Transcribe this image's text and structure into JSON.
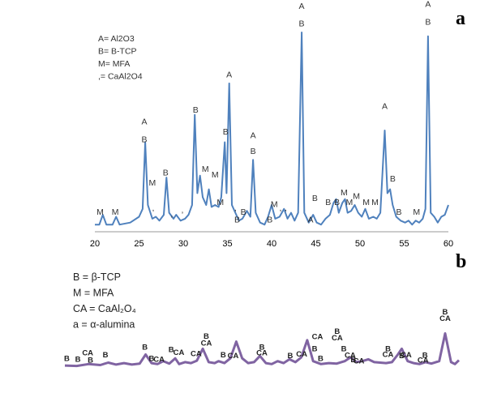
{
  "chart_data": [
    {
      "type": "line",
      "panel_label": "a",
      "series_color": "#4f81bd",
      "legend": [
        "A= Al2O3",
        "B= B-TCP",
        "M= MFA",
        ",= CaAl2O4"
      ],
      "xlim": [
        20,
        60
      ],
      "x_ticks": [
        "20",
        "25",
        "30",
        "35",
        "40",
        "45",
        "50",
        "55",
        "60"
      ],
      "ylim": [
        0,
        100
      ],
      "grid": false,
      "axis_line": "bottom only",
      "series": [
        {
          "points": [
            [
              20.0,
              2
            ],
            [
              20.5,
              2
            ],
            [
              20.9,
              7
            ],
            [
              21.3,
              2
            ],
            [
              22.0,
              2
            ],
            [
              22.4,
              6
            ],
            [
              22.8,
              2
            ],
            [
              24.0,
              3
            ],
            [
              25.0,
              6
            ],
            [
              25.4,
              10
            ],
            [
              25.7,
              44
            ],
            [
              26.0,
              12
            ],
            [
              26.5,
              5
            ],
            [
              26.9,
              6
            ],
            [
              27.3,
              4
            ],
            [
              27.8,
              7
            ],
            [
              28.1,
              26
            ],
            [
              28.4,
              8
            ],
            [
              28.9,
              5
            ],
            [
              29.2,
              7
            ],
            [
              29.7,
              4
            ],
            [
              30.2,
              5
            ],
            [
              30.6,
              7
            ],
            [
              31.0,
              12
            ],
            [
              31.3,
              58
            ],
            [
              31.6,
              18
            ],
            [
              31.9,
              27
            ],
            [
              32.2,
              16
            ],
            [
              32.6,
              12
            ],
            [
              32.9,
              20
            ],
            [
              33.2,
              11
            ],
            [
              33.6,
              12
            ],
            [
              34.0,
              11
            ],
            [
              34.3,
              16
            ],
            [
              34.7,
              44
            ],
            [
              34.9,
              18
            ],
            [
              35.2,
              74
            ],
            [
              35.5,
              12
            ],
            [
              35.9,
              8
            ],
            [
              36.3,
              4
            ],
            [
              36.7,
              5
            ],
            [
              37.2,
              9
            ],
            [
              37.6,
              6
            ],
            [
              37.9,
              35
            ],
            [
              38.2,
              8
            ],
            [
              38.7,
              3
            ],
            [
              39.2,
              2
            ],
            [
              39.6,
              6
            ],
            [
              40.0,
              12
            ],
            [
              40.4,
              5
            ],
            [
              40.9,
              6
            ],
            [
              41.4,
              10
            ],
            [
              41.8,
              5
            ],
            [
              42.2,
              8
            ],
            [
              42.6,
              4
            ],
            [
              43.0,
              8
            ],
            [
              43.4,
              100
            ],
            [
              43.7,
              8
            ],
            [
              44.2,
              3
            ],
            [
              44.7,
              7
            ],
            [
              45.1,
              3
            ],
            [
              45.6,
              2
            ],
            [
              46.1,
              5
            ],
            [
              46.6,
              7
            ],
            [
              47.0,
              13
            ],
            [
              47.3,
              15
            ],
            [
              47.6,
              8
            ],
            [
              48.0,
              13
            ],
            [
              48.3,
              15
            ],
            [
              48.6,
              8
            ],
            [
              49.0,
              9
            ],
            [
              49.4,
              12
            ],
            [
              49.8,
              8
            ],
            [
              50.2,
              6
            ],
            [
              50.6,
              10
            ],
            [
              51.0,
              5
            ],
            [
              51.5,
              6
            ],
            [
              51.9,
              5
            ],
            [
              52.3,
              8
            ],
            [
              52.8,
              50
            ],
            [
              53.1,
              18
            ],
            [
              53.4,
              20
            ],
            [
              53.7,
              12
            ],
            [
              54.1,
              6
            ],
            [
              54.6,
              4
            ],
            [
              55.1,
              3
            ],
            [
              55.5,
              4
            ],
            [
              55.9,
              2
            ],
            [
              56.3,
              4
            ],
            [
              56.7,
              3
            ],
            [
              57.1,
              5
            ],
            [
              57.4,
              10
            ],
            [
              57.7,
              98
            ],
            [
              58.0,
              8
            ],
            [
              58.4,
              6
            ],
            [
              58.8,
              3
            ],
            [
              59.2,
              6
            ],
            [
              59.6,
              7
            ],
            [
              60.0,
              12
            ]
          ]
        }
      ],
      "peak_labels": [
        {
          "x": 20.6,
          "y": 7,
          "text": "M"
        },
        {
          "x": 22.3,
          "y": 7,
          "text": "M"
        },
        {
          "x": 25.6,
          "y": 53,
          "text": "A"
        },
        {
          "x": 25.6,
          "y": 44,
          "text": "B"
        },
        {
          "x": 26.5,
          "y": 22,
          "text": "M"
        },
        {
          "x": 26.6,
          "y": 9,
          "text": ","
        },
        {
          "x": 28.0,
          "y": 27,
          "text": "B"
        },
        {
          "x": 28.7,
          "y": 6,
          "text": ","
        },
        {
          "x": 29.9,
          "y": 8,
          "text": ","
        },
        {
          "x": 31.4,
          "y": 59,
          "text": "B"
        },
        {
          "x": 32.5,
          "y": 29,
          "text": "M"
        },
        {
          "x": 33.6,
          "y": 26,
          "text": "M"
        },
        {
          "x": 34.2,
          "y": 12,
          "text": "M"
        },
        {
          "x": 34.8,
          "y": 48,
          "text": "B"
        },
        {
          "x": 35.2,
          "y": 77,
          "text": "A"
        },
        {
          "x": 35.9,
          "y": 9,
          "text": ","
        },
        {
          "x": 36.1,
          "y": 3,
          "text": "B"
        },
        {
          "x": 36.8,
          "y": 7,
          "text": "B"
        },
        {
          "x": 37.9,
          "y": 46,
          "text": "A"
        },
        {
          "x": 37.9,
          "y": 38,
          "text": "B"
        },
        {
          "x": 39.8,
          "y": 3,
          "text": "B"
        },
        {
          "x": 40.3,
          "y": 11,
          "text": "M"
        },
        {
          "x": 41.0,
          "y": 9,
          "text": ","
        },
        {
          "x": 41.6,
          "y": 9,
          "text": ","
        },
        {
          "x": 43.4,
          "y": 112,
          "text": "A"
        },
        {
          "x": 43.4,
          "y": 103,
          "text": "B"
        },
        {
          "x": 44.4,
          "y": 3,
          "text": "A"
        },
        {
          "x": 44.9,
          "y": 14,
          "text": "B"
        },
        {
          "x": 46.4,
          "y": 12,
          "text": "B"
        },
        {
          "x": 47.4,
          "y": 12,
          "text": "B"
        },
        {
          "x": 48.2,
          "y": 17,
          "text": "M"
        },
        {
          "x": 48.8,
          "y": 12,
          "text": "M"
        },
        {
          "x": 49.6,
          "y": 15,
          "text": "M"
        },
        {
          "x": 50.7,
          "y": 12,
          "text": "M"
        },
        {
          "x": 51.7,
          "y": 12,
          "text": "M"
        },
        {
          "x": 52.8,
          "y": 61,
          "text": "A"
        },
        {
          "x": 53.7,
          "y": 24,
          "text": "B"
        },
        {
          "x": 54.4,
          "y": 7,
          "text": "B"
        },
        {
          "x": 56.4,
          "y": 7,
          "text": "M"
        },
        {
          "x": 57.7,
          "y": 113,
          "text": "A"
        },
        {
          "x": 57.7,
          "y": 104,
          "text": "B"
        }
      ]
    },
    {
      "type": "line",
      "panel_label": "b",
      "series_color": "#8064a2",
      "legend": [
        "B = β-TCP",
        "M = MFA",
        "CA = CaAl₂O₄",
        "a = α-alumina"
      ],
      "xlim": [
        0,
        100
      ],
      "ylim": [
        0,
        100
      ],
      "axes_shown": false,
      "series": [
        {
          "points": [
            [
              0,
              5
            ],
            [
              3,
              4
            ],
            [
              6,
              8
            ],
            [
              9,
              6
            ],
            [
              11,
              11
            ],
            [
              13,
              7
            ],
            [
              15,
              10
            ],
            [
              17,
              7
            ],
            [
              19,
              9
            ],
            [
              20.5,
              28
            ],
            [
              22,
              10
            ],
            [
              23.5,
              8
            ],
            [
              25,
              14
            ],
            [
              26.5,
              9
            ],
            [
              28,
              20
            ],
            [
              29,
              8
            ],
            [
              30.5,
              12
            ],
            [
              32,
              10
            ],
            [
              33.5,
              15
            ],
            [
              35,
              40
            ],
            [
              36.5,
              12
            ],
            [
              38,
              10
            ],
            [
              39,
              14
            ],
            [
              40.5,
              10
            ],
            [
              42,
              20
            ],
            [
              43.5,
              55
            ],
            [
              45,
              20
            ],
            [
              46.5,
              10
            ],
            [
              48,
              12
            ],
            [
              49.5,
              25
            ],
            [
              51,
              10
            ],
            [
              52.5,
              8
            ],
            [
              54,
              14
            ],
            [
              55.5,
              10
            ],
            [
              57,
              18
            ],
            [
              58.5,
              12
            ],
            [
              60,
              22
            ],
            [
              61.5,
              58
            ],
            [
              63,
              14
            ],
            [
              65,
              8
            ],
            [
              67,
              10
            ],
            [
              69,
              9
            ],
            [
              71,
              14
            ],
            [
              72.5,
              22
            ],
            [
              74,
              12
            ],
            [
              75.5,
              14
            ],
            [
              77,
              18
            ],
            [
              78.5,
              12
            ],
            [
              80,
              11
            ],
            [
              81.5,
              10
            ],
            [
              83,
              12
            ],
            [
              84.5,
              28
            ],
            [
              85.5,
              40
            ],
            [
              87,
              14
            ],
            [
              88.5,
              10
            ],
            [
              90,
              8
            ],
            [
              91.5,
              12
            ],
            [
              93,
              9
            ],
            [
              95,
              14
            ],
            [
              96.5,
              72
            ],
            [
              98,
              12
            ],
            [
              99,
              8
            ],
            [
              100,
              16
            ]
          ]
        }
      ],
      "peak_labels": [
        {
          "x": 0.5,
          "y": 14,
          "text": "B"
        },
        {
          "x": 3.3,
          "y": 13,
          "text": "B"
        },
        {
          "x": 5.8,
          "y": 26,
          "text": "CA"
        },
        {
          "x": 6.5,
          "y": 11,
          "text": "B"
        },
        {
          "x": 10.3,
          "y": 22,
          "text": "B"
        },
        {
          "x": 20.3,
          "y": 38,
          "text": "B"
        },
        {
          "x": 22.0,
          "y": 14,
          "text": "B"
        },
        {
          "x": 23.9,
          "y": 13,
          "text": "CA"
        },
        {
          "x": 27.0,
          "y": 33,
          "text": "B"
        },
        {
          "x": 28.9,
          "y": 27,
          "text": "CA"
        },
        {
          "x": 33.3,
          "y": 25,
          "text": "CA"
        },
        {
          "x": 35.9,
          "y": 61,
          "text": "B"
        },
        {
          "x": 35.9,
          "y": 47,
          "text": "CA"
        },
        {
          "x": 40.2,
          "y": 22,
          "text": "B"
        },
        {
          "x": 42.7,
          "y": 20,
          "text": "CA"
        },
        {
          "x": 50.0,
          "y": 38,
          "text": "B"
        },
        {
          "x": 50.0,
          "y": 26,
          "text": "CA"
        },
        {
          "x": 57.2,
          "y": 20,
          "text": "B"
        },
        {
          "x": 60.1,
          "y": 24,
          "text": "CA"
        },
        {
          "x": 64.9,
          "y": 14,
          "text": "B"
        },
        {
          "x": 64.1,
          "y": 60,
          "text": "CA"
        },
        {
          "x": 63.4,
          "y": 35,
          "text": "B"
        },
        {
          "x": 69.1,
          "y": 71,
          "text": "B"
        },
        {
          "x": 69.1,
          "y": 58,
          "text": "CA"
        },
        {
          "x": 72.4,
          "y": 21,
          "text": "CA"
        },
        {
          "x": 70.8,
          "y": 35,
          "text": "B"
        },
        {
          "x": 73.2,
          "y": 12,
          "text": "B"
        },
        {
          "x": 74.6,
          "y": 9,
          "text": "CA"
        },
        {
          "x": 82.0,
          "y": 35,
          "text": "B"
        },
        {
          "x": 82.0,
          "y": 23,
          "text": "CA"
        },
        {
          "x": 85.5,
          "y": 20,
          "text": "B"
        },
        {
          "x": 86.6,
          "y": 22,
          "text": "CA"
        },
        {
          "x": 91.4,
          "y": 21,
          "text": "B"
        },
        {
          "x": 90.9,
          "y": 11,
          "text": "CA"
        },
        {
          "x": 96.5,
          "y": 112,
          "text": "B"
        },
        {
          "x": 96.5,
          "y": 98,
          "text": "CA"
        }
      ]
    }
  ]
}
